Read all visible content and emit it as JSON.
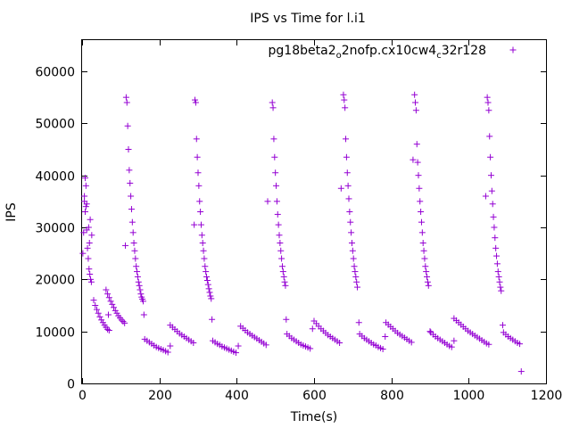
{
  "chart_data": {
    "type": "scatter",
    "title": "IPS vs Time for l.i1",
    "xlabel": "Time(s)",
    "ylabel": "IPS",
    "xlim": [
      0,
      1200
    ],
    "ylim": [
      0,
      66000
    ],
    "x_ticks": [
      "0",
      "200",
      "400",
      "600",
      "800",
      "1000",
      "1200"
    ],
    "y_ticks": [
      "0",
      "10000",
      "20000",
      "30000",
      "40000",
      "50000",
      "60000"
    ],
    "grid": false,
    "legend_position": "top-right",
    "marker": "plus",
    "color": "#9400d3",
    "series": [
      {
        "name_parts": [
          "pg18beta2",
          "o",
          "2nofp.cx10cw4",
          "c",
          "32r128"
        ],
        "name_sub": [
          false,
          true,
          false,
          true,
          false
        ],
        "points": [
          [
            2,
            25000
          ],
          [
            4,
            29000
          ],
          [
            6,
            35000
          ],
          [
            8,
            39500
          ],
          [
            10,
            34000
          ],
          [
            12,
            29500
          ],
          [
            14,
            26000
          ],
          [
            16,
            24000
          ],
          [
            18,
            22000
          ],
          [
            20,
            21000
          ],
          [
            22,
            20000
          ],
          [
            24,
            19500
          ],
          [
            17,
            30000
          ],
          [
            19,
            27000
          ],
          [
            21,
            31500
          ],
          [
            25,
            28500
          ],
          [
            12,
            34500
          ],
          [
            10,
            38000
          ],
          [
            8,
            33000
          ],
          [
            6,
            36000
          ],
          [
            30,
            16000
          ],
          [
            34,
            15000
          ],
          [
            38,
            14200
          ],
          [
            42,
            13500
          ],
          [
            46,
            12800
          ],
          [
            50,
            12200
          ],
          [
            54,
            11700
          ],
          [
            58,
            11200
          ],
          [
            62,
            10800
          ],
          [
            66,
            10400
          ],
          [
            70,
            10200
          ],
          [
            68,
            13200
          ],
          [
            62,
            18000
          ],
          [
            66,
            17200
          ],
          [
            70,
            16500
          ],
          [
            74,
            15800
          ],
          [
            78,
            15200
          ],
          [
            82,
            14600
          ],
          [
            86,
            14000
          ],
          [
            90,
            13500
          ],
          [
            94,
            13000
          ],
          [
            98,
            12600
          ],
          [
            102,
            12200
          ],
          [
            106,
            11900
          ],
          [
            110,
            11600
          ],
          [
            112,
            26500
          ],
          [
            114,
            55000
          ],
          [
            116,
            54000
          ],
          [
            118,
            49500
          ],
          [
            120,
            45000
          ],
          [
            122,
            41000
          ],
          [
            124,
            38500
          ],
          [
            126,
            36000
          ],
          [
            128,
            33500
          ],
          [
            130,
            31000
          ],
          [
            132,
            29000
          ],
          [
            134,
            27000
          ],
          [
            136,
            25500
          ],
          [
            138,
            24000
          ],
          [
            140,
            22500
          ],
          [
            142,
            21500
          ],
          [
            144,
            20500
          ],
          [
            146,
            19500
          ],
          [
            148,
            18800
          ],
          [
            150,
            18000
          ],
          [
            152,
            17200
          ],
          [
            154,
            16600
          ],
          [
            156,
            16200
          ],
          [
            158,
            15800
          ],
          [
            160,
            13200
          ],
          [
            162,
            8500
          ],
          [
            168,
            8200
          ],
          [
            174,
            7900
          ],
          [
            180,
            7600
          ],
          [
            186,
            7300
          ],
          [
            192,
            7000
          ],
          [
            198,
            6800
          ],
          [
            204,
            6600
          ],
          [
            210,
            6400
          ],
          [
            216,
            6200
          ],
          [
            222,
            6000
          ],
          [
            228,
            7200
          ],
          [
            228,
            11200
          ],
          [
            234,
            10800
          ],
          [
            240,
            10400
          ],
          [
            246,
            10000
          ],
          [
            252,
            9600
          ],
          [
            258,
            9300
          ],
          [
            264,
            9000
          ],
          [
            270,
            8700
          ],
          [
            276,
            8400
          ],
          [
            282,
            8100
          ],
          [
            288,
            7800
          ],
          [
            290,
            30500
          ],
          [
            292,
            54500
          ],
          [
            294,
            54000
          ],
          [
            296,
            47000
          ],
          [
            298,
            43500
          ],
          [
            300,
            40500
          ],
          [
            302,
            38000
          ],
          [
            304,
            35000
          ],
          [
            306,
            33000
          ],
          [
            308,
            30500
          ],
          [
            310,
            28500
          ],
          [
            312,
            27000
          ],
          [
            314,
            25500
          ],
          [
            316,
            24000
          ],
          [
            318,
            22500
          ],
          [
            320,
            21500
          ],
          [
            322,
            20500
          ],
          [
            324,
            19800
          ],
          [
            326,
            19000
          ],
          [
            328,
            18200
          ],
          [
            330,
            17500
          ],
          [
            332,
            16800
          ],
          [
            334,
            16300
          ],
          [
            336,
            12300
          ],
          [
            338,
            8200
          ],
          [
            344,
            7900
          ],
          [
            350,
            7600
          ],
          [
            356,
            7400
          ],
          [
            362,
            7100
          ],
          [
            368,
            6900
          ],
          [
            374,
            6700
          ],
          [
            380,
            6500
          ],
          [
            386,
            6300
          ],
          [
            392,
            6100
          ],
          [
            398,
            5900
          ],
          [
            404,
            7200
          ],
          [
            410,
            11000
          ],
          [
            416,
            10600
          ],
          [
            422,
            10200
          ],
          [
            428,
            9800
          ],
          [
            434,
            9500
          ],
          [
            440,
            9200
          ],
          [
            446,
            8900
          ],
          [
            452,
            8600
          ],
          [
            458,
            8300
          ],
          [
            464,
            8000
          ],
          [
            470,
            7700
          ],
          [
            476,
            7400
          ],
          [
            480,
            35000
          ],
          [
            492,
            54000
          ],
          [
            494,
            53000
          ],
          [
            496,
            47000
          ],
          [
            498,
            43500
          ],
          [
            500,
            40500
          ],
          [
            502,
            38000
          ],
          [
            504,
            35000
          ],
          [
            506,
            32500
          ],
          [
            508,
            30500
          ],
          [
            510,
            28500
          ],
          [
            512,
            27000
          ],
          [
            514,
            25500
          ],
          [
            516,
            24000
          ],
          [
            518,
            22500
          ],
          [
            520,
            21500
          ],
          [
            522,
            20500
          ],
          [
            524,
            19500
          ],
          [
            526,
            18800
          ],
          [
            528,
            12300
          ],
          [
            530,
            9500
          ],
          [
            536,
            9100
          ],
          [
            542,
            8700
          ],
          [
            548,
            8400
          ],
          [
            554,
            8100
          ],
          [
            560,
            7800
          ],
          [
            566,
            7500
          ],
          [
            572,
            7300
          ],
          [
            578,
            7100
          ],
          [
            584,
            6900
          ],
          [
            590,
            6700
          ],
          [
            596,
            10500
          ],
          [
            600,
            12000
          ],
          [
            606,
            11500
          ],
          [
            612,
            11000
          ],
          [
            618,
            10500
          ],
          [
            624,
            10100
          ],
          [
            630,
            9700
          ],
          [
            636,
            9300
          ],
          [
            642,
            9000
          ],
          [
            648,
            8700
          ],
          [
            654,
            8400
          ],
          [
            660,
            8100
          ],
          [
            666,
            7800
          ],
          [
            670,
            37500
          ],
          [
            676,
            55500
          ],
          [
            678,
            54500
          ],
          [
            680,
            53000
          ],
          [
            682,
            47000
          ],
          [
            684,
            43500
          ],
          [
            686,
            40500
          ],
          [
            688,
            38000
          ],
          [
            690,
            35500
          ],
          [
            692,
            33000
          ],
          [
            694,
            31000
          ],
          [
            696,
            29000
          ],
          [
            698,
            27000
          ],
          [
            700,
            25500
          ],
          [
            702,
            24000
          ],
          [
            704,
            22500
          ],
          [
            706,
            21500
          ],
          [
            708,
            20500
          ],
          [
            710,
            19500
          ],
          [
            712,
            18500
          ],
          [
            716,
            11700
          ],
          [
            718,
            9500
          ],
          [
            724,
            9100
          ],
          [
            730,
            8700
          ],
          [
            736,
            8400
          ],
          [
            742,
            8100
          ],
          [
            748,
            7800
          ],
          [
            754,
            7500
          ],
          [
            760,
            7300
          ],
          [
            766,
            7000
          ],
          [
            772,
            6800
          ],
          [
            778,
            6600
          ],
          [
            784,
            9000
          ],
          [
            786,
            11700
          ],
          [
            792,
            11300
          ],
          [
            798,
            10900
          ],
          [
            804,
            10500
          ],
          [
            810,
            10100
          ],
          [
            816,
            9700
          ],
          [
            822,
            9400
          ],
          [
            828,
            9100
          ],
          [
            834,
            8800
          ],
          [
            840,
            8500
          ],
          [
            846,
            8200
          ],
          [
            852,
            7900
          ],
          [
            856,
            43000
          ],
          [
            860,
            55500
          ],
          [
            862,
            54000
          ],
          [
            864,
            52500
          ],
          [
            866,
            46000
          ],
          [
            868,
            42500
          ],
          [
            870,
            40000
          ],
          [
            872,
            37500
          ],
          [
            874,
            35000
          ],
          [
            876,
            33000
          ],
          [
            878,
            31000
          ],
          [
            880,
            29000
          ],
          [
            882,
            27000
          ],
          [
            884,
            25500
          ],
          [
            886,
            24000
          ],
          [
            888,
            22500
          ],
          [
            890,
            21500
          ],
          [
            892,
            20500
          ],
          [
            894,
            19500
          ],
          [
            896,
            18800
          ],
          [
            900,
            10000
          ],
          [
            902,
            9800
          ],
          [
            908,
            9400
          ],
          [
            914,
            9000
          ],
          [
            920,
            8700
          ],
          [
            926,
            8400
          ],
          [
            932,
            8100
          ],
          [
            938,
            7800
          ],
          [
            944,
            7500
          ],
          [
            950,
            7200
          ],
          [
            956,
            7000
          ],
          [
            962,
            8200
          ],
          [
            962,
            12500
          ],
          [
            968,
            12100
          ],
          [
            974,
            11700
          ],
          [
            980,
            11300
          ],
          [
            986,
            10900
          ],
          [
            992,
            10500
          ],
          [
            998,
            10100
          ],
          [
            1004,
            9800
          ],
          [
            1010,
            9500
          ],
          [
            1016,
            9200
          ],
          [
            1022,
            8900
          ],
          [
            1028,
            8600
          ],
          [
            1034,
            8300
          ],
          [
            1040,
            8000
          ],
          [
            1046,
            7700
          ],
          [
            1052,
            7500
          ],
          [
            1044,
            36000
          ],
          [
            1048,
            55000
          ],
          [
            1050,
            54000
          ],
          [
            1052,
            52500
          ],
          [
            1054,
            47500
          ],
          [
            1056,
            43500
          ],
          [
            1058,
            40000
          ],
          [
            1060,
            37000
          ],
          [
            1062,
            34500
          ],
          [
            1064,
            32000
          ],
          [
            1066,
            30000
          ],
          [
            1068,
            28000
          ],
          [
            1070,
            26000
          ],
          [
            1072,
            24500
          ],
          [
            1074,
            23000
          ],
          [
            1076,
            21500
          ],
          [
            1078,
            20500
          ],
          [
            1080,
            19500
          ],
          [
            1082,
            18500
          ],
          [
            1084,
            17800
          ],
          [
            1088,
            11200
          ],
          [
            1090,
            9800
          ],
          [
            1096,
            9400
          ],
          [
            1102,
            9000
          ],
          [
            1108,
            8700
          ],
          [
            1114,
            8400
          ],
          [
            1120,
            8100
          ],
          [
            1126,
            7800
          ],
          [
            1132,
            7600
          ],
          [
            1136,
            2300
          ]
        ]
      }
    ]
  }
}
